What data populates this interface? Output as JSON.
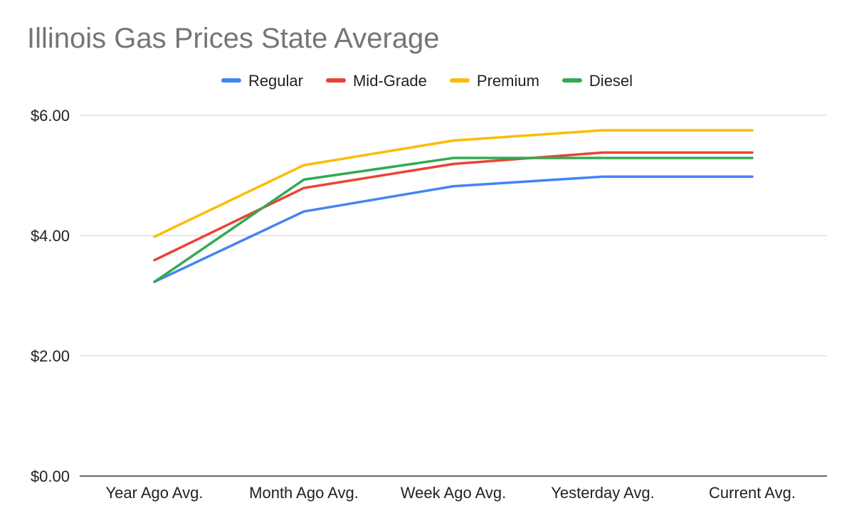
{
  "chart_data": {
    "type": "line",
    "title": "Illinois Gas Prices State Average",
    "categories": [
      "Year Ago Avg.",
      "Month Ago Avg.",
      "Week Ago Avg.",
      "Yesterday Avg.",
      "Current Avg."
    ],
    "series": [
      {
        "name": "Regular",
        "color": "#4285F4",
        "values": [
          3.23,
          4.4,
          4.82,
          4.98,
          4.98
        ]
      },
      {
        "name": "Mid-Grade",
        "color": "#EA4335",
        "values": [
          3.59,
          4.79,
          5.19,
          5.38,
          5.38
        ]
      },
      {
        "name": "Premium",
        "color": "#FBBC04",
        "values": [
          3.98,
          5.17,
          5.58,
          5.75,
          5.75
        ]
      },
      {
        "name": "Diesel",
        "color": "#34A853",
        "values": [
          3.23,
          4.93,
          5.29,
          5.29,
          5.29
        ]
      }
    ],
    "y_ticks": [
      "$0.00",
      "$2.00",
      "$4.00",
      "$6.00"
    ],
    "ylim": [
      0,
      6
    ],
    "legend_position": "top",
    "grid": true
  }
}
